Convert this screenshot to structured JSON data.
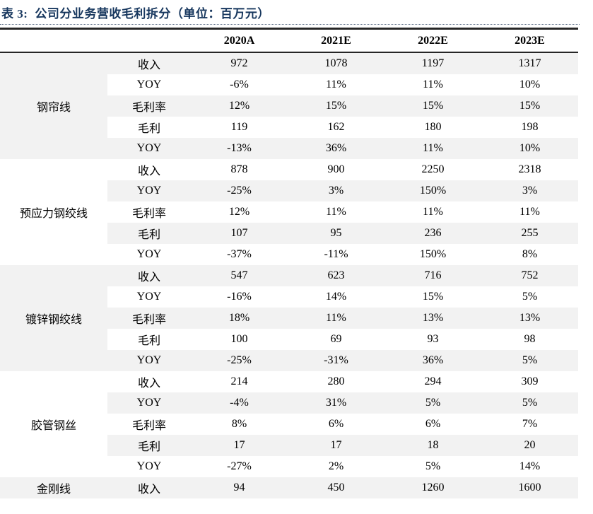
{
  "title": {
    "label": "表 3:",
    "text": "公司分业务营收毛利拆分（单位：百万元）"
  },
  "colors": {
    "title_navy": "#17375e",
    "band_gray": "#f2f2f2",
    "border_dark": "#262626"
  },
  "table": {
    "year_headers": [
      "2020A",
      "2021E",
      "2022E",
      "2023E"
    ],
    "groups": [
      {
        "name": "钢帘线",
        "rows": [
          {
            "metric": "收入",
            "values": [
              "972",
              "1078",
              "1197",
              "1317"
            ]
          },
          {
            "metric": "YOY",
            "values": [
              "-6%",
              "11%",
              "11%",
              "10%"
            ]
          },
          {
            "metric": "毛利率",
            "values": [
              "12%",
              "15%",
              "15%",
              "15%"
            ]
          },
          {
            "metric": "毛利",
            "values": [
              "119",
              "162",
              "180",
              "198"
            ]
          },
          {
            "metric": "YOY",
            "values": [
              "-13%",
              "36%",
              "11%",
              "10%"
            ]
          }
        ]
      },
      {
        "name": "预应力钢绞线",
        "rows": [
          {
            "metric": "收入",
            "values": [
              "878",
              "900",
              "2250",
              "2318"
            ]
          },
          {
            "metric": "YOY",
            "values": [
              "-25%",
              "3%",
              "150%",
              "3%"
            ]
          },
          {
            "metric": "毛利率",
            "values": [
              "12%",
              "11%",
              "11%",
              "11%"
            ]
          },
          {
            "metric": "毛利",
            "values": [
              "107",
              "95",
              "236",
              "255"
            ]
          },
          {
            "metric": "YOY",
            "values": [
              "-37%",
              "-11%",
              "150%",
              "8%"
            ]
          }
        ]
      },
      {
        "name": "镀锌钢绞线",
        "rows": [
          {
            "metric": "收入",
            "values": [
              "547",
              "623",
              "716",
              "752"
            ]
          },
          {
            "metric": "YOY",
            "values": [
              "-16%",
              "14%",
              "15%",
              "5%"
            ]
          },
          {
            "metric": "毛利率",
            "values": [
              "18%",
              "11%",
              "13%",
              "13%"
            ]
          },
          {
            "metric": "毛利",
            "values": [
              "100",
              "69",
              "93",
              "98"
            ]
          },
          {
            "metric": "YOY",
            "values": [
              "-25%",
              "-31%",
              "36%",
              "5%"
            ]
          }
        ]
      },
      {
        "name": "胶管钢丝",
        "rows": [
          {
            "metric": "收入",
            "values": [
              "214",
              "280",
              "294",
              "309"
            ]
          },
          {
            "metric": "YOY",
            "values": [
              "-4%",
              "31%",
              "5%",
              "5%"
            ]
          },
          {
            "metric": "毛利率",
            "values": [
              "8%",
              "6%",
              "6%",
              "7%"
            ]
          },
          {
            "metric": "毛利",
            "values": [
              "17",
              "17",
              "18",
              "20"
            ]
          },
          {
            "metric": "YOY",
            "values": [
              "-27%",
              "2%",
              "5%",
              "14%"
            ]
          }
        ]
      },
      {
        "name": "金刚线",
        "rows": [
          {
            "metric": "收入",
            "values": [
              "94",
              "450",
              "1260",
              "1600"
            ]
          }
        ]
      }
    ]
  }
}
